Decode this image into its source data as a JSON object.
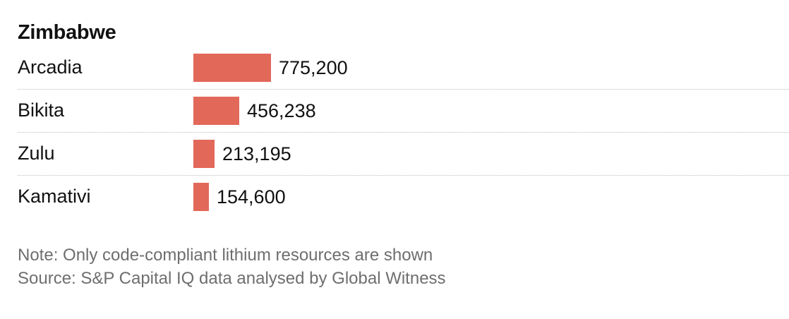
{
  "chart_data": {
    "type": "bar",
    "orientation": "horizontal",
    "title": "Zimbabwe",
    "categories": [
      "Arcadia",
      "Bikita",
      "Zulu",
      "Kamativi"
    ],
    "values": [
      775200,
      456238,
      213195,
      154600
    ],
    "value_labels": [
      "775,200",
      "456,238",
      "213,195",
      "154,600"
    ],
    "bar_color": "#e2685a",
    "grid": false,
    "legend": "none"
  },
  "notes": {
    "note": "Note: Only code-compliant lithium resources are shown",
    "source": "Source: S&P Capital IQ data analysed by Global Witness"
  }
}
